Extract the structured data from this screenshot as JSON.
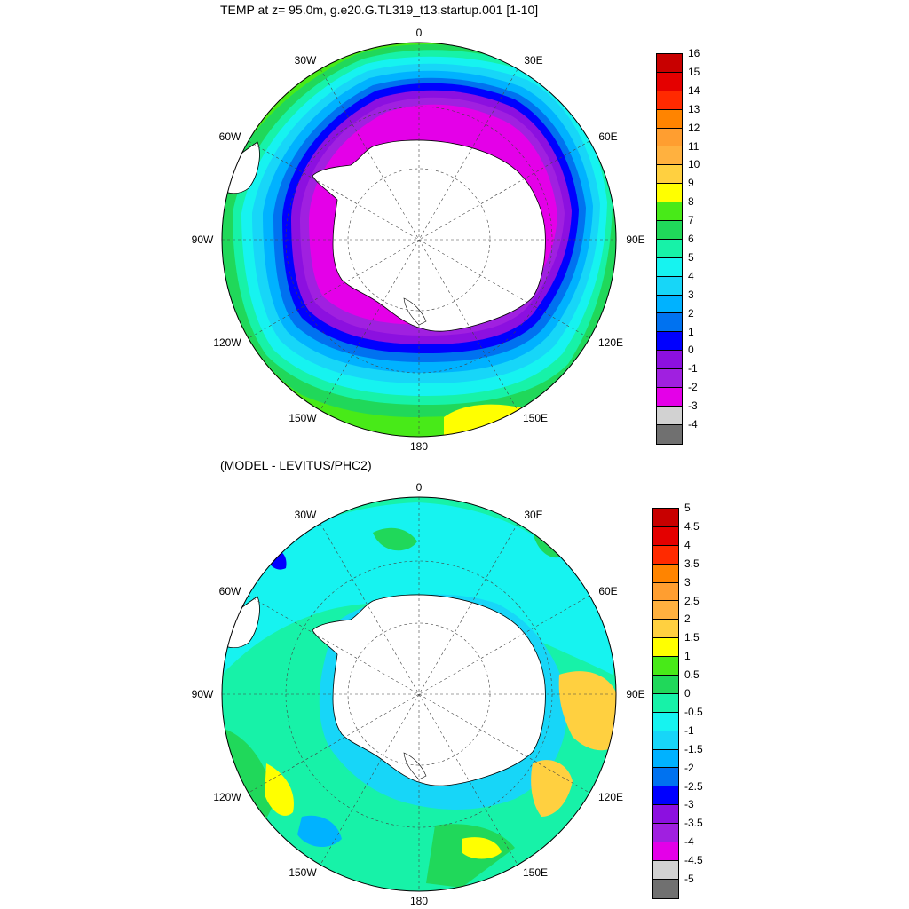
{
  "top_panel": {
    "title": "TEMP at z=  95.0m, g.e20.G.TL319_t13.startup.001 [1-10]",
    "lon_labels": {
      "n": "0",
      "nne": "30E",
      "ene": "60E",
      "e": "90E",
      "ese": "120E",
      "sse": "150E",
      "s": "180",
      "ssw": "150W",
      "wsw": "120W",
      "w": "90W",
      "wnw": "60W",
      "nnw": "30W"
    },
    "colorbar": {
      "ticks": [
        "16",
        "15",
        "14",
        "13",
        "12",
        "11",
        "10",
        "9",
        "8",
        "7",
        "6",
        "5",
        "4",
        "3",
        "2",
        "1",
        "0",
        "-1",
        "-2",
        "-3",
        "-4"
      ],
      "colors": [
        "#c80000",
        "#e40000",
        "#ff2a00",
        "#ff8400",
        "#ff9e30",
        "#ffb13f",
        "#ffd040",
        "#ffff00",
        "#48ea18",
        "#20d85a",
        "#17f2a8",
        "#16f3f0",
        "#17d6f8",
        "#00b2ff",
        "#0072f0",
        "#0000ff",
        "#8c10e0",
        "#a020e0",
        "#e400e8",
        "#d2d2d2",
        "#707070"
      ]
    }
  },
  "bottom_panel": {
    "title": "(MODEL - LEVITUS/PHC2)",
    "lon_labels": {
      "n": "0",
      "nne": "30E",
      "ene": "60E",
      "e": "90E",
      "ese": "120E",
      "sse": "150E",
      "s": "180",
      "ssw": "150W",
      "wsw": "120W",
      "w": "90W",
      "wnw": "60W",
      "nnw": "30W"
    },
    "colorbar": {
      "ticks": [
        "5",
        "4.5",
        "4",
        "3.5",
        "3",
        "2.5",
        "2",
        "1.5",
        "1",
        "0.5",
        "0",
        "-0.5",
        "-1",
        "-1.5",
        "-2",
        "-2.5",
        "-3",
        "-3.5",
        "-4",
        "-4.5",
        "-5"
      ],
      "colors": [
        "#c80000",
        "#e40000",
        "#ff2a00",
        "#ff8400",
        "#ff9e30",
        "#ffb13f",
        "#ffd040",
        "#ffff00",
        "#48ea18",
        "#20d85a",
        "#17f2a8",
        "#16f3f0",
        "#17d6f8",
        "#00b2ff",
        "#0072f0",
        "#0000ff",
        "#8c10e0",
        "#a020e0",
        "#e400e8",
        "#d2d2d2",
        "#707070"
      ]
    }
  }
}
